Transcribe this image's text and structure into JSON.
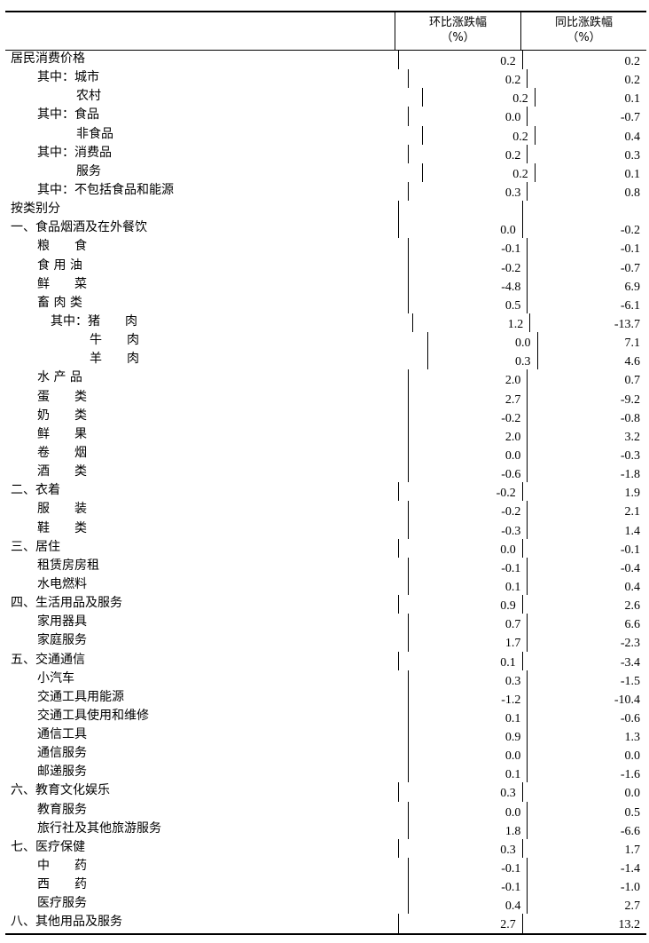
{
  "header": {
    "col_mom": "环比涨跌幅",
    "col_yoy": "同比涨跌幅",
    "unit": "（%）"
  },
  "rows": [
    {
      "label": "居民消费价格",
      "level": 0,
      "mom": "0.2",
      "yoy": "0.2"
    },
    {
      "label": "其中：城市",
      "level": 1,
      "mom": "0.2",
      "yoy": "0.2"
    },
    {
      "label": "农村",
      "level": 2,
      "mom": "0.2",
      "yoy": "0.1"
    },
    {
      "label": "其中：食品",
      "level": 1,
      "mom": "0.0",
      "yoy": "-0.7"
    },
    {
      "label": "非食品",
      "level": 2,
      "mom": "0.2",
      "yoy": "0.4"
    },
    {
      "label": "其中：消费品",
      "level": 1,
      "mom": "0.2",
      "yoy": "0.3"
    },
    {
      "label": "服务",
      "level": 2,
      "mom": "0.2",
      "yoy": "0.1"
    },
    {
      "label": "其中：不包括食品和能源",
      "level": 1,
      "mom": "0.3",
      "yoy": "0.8"
    },
    {
      "label": "按类别分",
      "level": 0,
      "mom": "",
      "yoy": ""
    },
    {
      "label": "一、食品烟酒及在外餐饮",
      "level": 0,
      "mom": "0.0",
      "yoy": "-0.2"
    },
    {
      "label": "粮　　食",
      "level": 1,
      "mom": "-0.1",
      "yoy": "-0.1"
    },
    {
      "label": "食 用 油",
      "level": 1,
      "mom": "-0.2",
      "yoy": "-0.7"
    },
    {
      "label": "鲜　　菜",
      "level": 1,
      "mom": "-4.8",
      "yoy": "6.9"
    },
    {
      "label": "畜 肉 类",
      "level": 1,
      "mom": "0.5",
      "yoy": "-6.1"
    },
    {
      "label": "其中：猪　　肉",
      "level": 3,
      "mom": "1.2",
      "yoy": "-13.7"
    },
    {
      "label": "牛　　肉",
      "level": 4,
      "mom": "0.0",
      "yoy": "7.1"
    },
    {
      "label": "羊　　肉",
      "level": 4,
      "mom": "0.3",
      "yoy": "4.6"
    },
    {
      "label": "水 产 品",
      "level": 1,
      "mom": "2.0",
      "yoy": "0.7"
    },
    {
      "label": "蛋　　类",
      "level": 1,
      "mom": "2.7",
      "yoy": "-9.2"
    },
    {
      "label": "奶　　类",
      "level": 1,
      "mom": "-0.2",
      "yoy": "-0.8"
    },
    {
      "label": "鲜　　果",
      "level": 1,
      "mom": "2.0",
      "yoy": "3.2"
    },
    {
      "label": "卷　　烟",
      "level": 1,
      "mom": "0.0",
      "yoy": "-0.3"
    },
    {
      "label": "酒　　类",
      "level": 1,
      "mom": "-0.6",
      "yoy": "-1.8"
    },
    {
      "label": "二、衣着",
      "level": 0,
      "mom": "-0.2",
      "yoy": "1.9"
    },
    {
      "label": "服　　装",
      "level": 1,
      "mom": "-0.2",
      "yoy": "2.1"
    },
    {
      "label": "鞋　　类",
      "level": 1,
      "mom": "-0.3",
      "yoy": "1.4"
    },
    {
      "label": "三、居住",
      "level": 0,
      "mom": "0.0",
      "yoy": "-0.1"
    },
    {
      "label": "租赁房房租",
      "level": 1,
      "mom": "-0.1",
      "yoy": "-0.4"
    },
    {
      "label": "水电燃料",
      "level": 1,
      "mom": "0.1",
      "yoy": "0.4"
    },
    {
      "label": "四、生活用品及服务",
      "level": 0,
      "mom": "0.9",
      "yoy": "2.6"
    },
    {
      "label": "家用器具",
      "level": 1,
      "mom": "0.7",
      "yoy": "6.6"
    },
    {
      "label": "家庭服务",
      "level": 1,
      "mom": "1.7",
      "yoy": "-2.3"
    },
    {
      "label": "五、交通通信",
      "level": 0,
      "mom": "0.1",
      "yoy": "-3.4"
    },
    {
      "label": "小汽车",
      "level": 1,
      "mom": "0.3",
      "yoy": "-1.5"
    },
    {
      "label": "交通工具用能源",
      "level": 1,
      "mom": "-1.2",
      "yoy": "-10.4"
    },
    {
      "label": "交通工具使用和维修",
      "level": 1,
      "mom": "0.1",
      "yoy": "-0.6"
    },
    {
      "label": "通信工具",
      "level": 1,
      "mom": "0.9",
      "yoy": "1.3"
    },
    {
      "label": "通信服务",
      "level": 1,
      "mom": "0.0",
      "yoy": "0.0"
    },
    {
      "label": "邮递服务",
      "level": 1,
      "mom": "0.1",
      "yoy": "-1.6"
    },
    {
      "label": "六、教育文化娱乐",
      "level": 0,
      "mom": "0.3",
      "yoy": "0.0"
    },
    {
      "label": "教育服务",
      "level": 1,
      "mom": "0.0",
      "yoy": "0.5"
    },
    {
      "label": "旅行社及其他旅游服务",
      "level": 1,
      "mom": "1.8",
      "yoy": "-6.6"
    },
    {
      "label": "七、医疗保健",
      "level": 0,
      "mom": "0.3",
      "yoy": "1.7"
    },
    {
      "label": "中　　药",
      "level": 1,
      "mom": "-0.1",
      "yoy": "-1.4"
    },
    {
      "label": "西　　药",
      "level": 1,
      "mom": "-0.1",
      "yoy": "-1.0"
    },
    {
      "label": "医疗服务",
      "level": 1,
      "mom": "0.4",
      "yoy": "2.7"
    },
    {
      "label": "八、其他用品及服务",
      "level": 0,
      "mom": "2.7",
      "yoy": "13.2"
    }
  ]
}
